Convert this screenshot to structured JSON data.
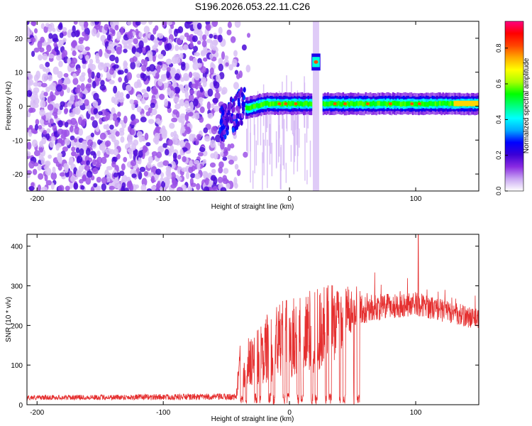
{
  "title": "S196.2026.053.22.11.C26",
  "chart_data": [
    {
      "type": "heatmap",
      "xlabel": "Height of straight line (km)",
      "ylabel": "Frequency (Hz)",
      "xlim": [
        -208,
        150
      ],
      "ylim": [
        -25,
        25
      ],
      "xticks": [
        -200,
        -100,
        0,
        100
      ],
      "yticks": [
        -20,
        -10,
        0,
        10,
        20
      ],
      "colorbar": {
        "label": "Normalized spectral amplitude",
        "range": [
          0,
          0.95
        ],
        "ticks": [
          "0.0",
          "0.2",
          "0.4",
          "0.6",
          "0.8"
        ],
        "colors": [
          "#ffffff",
          "#c9a6f2",
          "#8a2be2",
          "#3a00d6",
          "#0000ff",
          "#00aaff",
          "#00ffff",
          "#00ff80",
          "#00ff00",
          "#aaff00",
          "#ffff00",
          "#ffaa00",
          "#ff4400",
          "#ff0000",
          "#ff0080"
        ]
      },
      "features": [
        {
          "name": "noise",
          "x_range": [
            -208,
            -40
          ],
          "y_range": [
            -25,
            25
          ],
          "amplitude": 0.15
        },
        {
          "name": "onset",
          "x_range": [
            -55,
            -35
          ],
          "y_center": -6,
          "amplitude": 0.35
        },
        {
          "name": "carrier",
          "x_range": [
            -35,
            150
          ],
          "y_center": 0.7,
          "amplitude": 0.5
        },
        {
          "name": "spur",
          "x": 21,
          "y_center": 13,
          "amplitude": 0.85
        },
        {
          "name": "gap",
          "x_range": [
            17,
            25
          ]
        }
      ],
      "grid": false
    },
    {
      "type": "line",
      "xlabel": "Height of straight line (km)",
      "ylabel": "SNR (10 * v/v)",
      "xlim": [
        -208,
        150
      ],
      "ylim": [
        0,
        430
      ],
      "xticks": [
        -200,
        -100,
        0,
        100
      ],
      "yticks": [
        0,
        100,
        200,
        300,
        400
      ],
      "color": "#e53030",
      "envelope": [
        {
          "x": -208,
          "mean": 18,
          "spread": 10
        },
        {
          "x": -42,
          "mean": 20,
          "spread": 14
        },
        {
          "x": -40,
          "mean": 70,
          "spread": 80
        },
        {
          "x": -10,
          "mean": 120,
          "spread": 140
        },
        {
          "x": 30,
          "mean": 150,
          "spread": 160
        },
        {
          "x": 55,
          "mean": 240,
          "spread": 60
        },
        {
          "x": 100,
          "mean": 255,
          "spread": 50
        },
        {
          "x": 150,
          "mean": 215,
          "spread": 45
        }
      ],
      "peak": {
        "x": 102,
        "y": 430
      },
      "grid": false
    }
  ]
}
